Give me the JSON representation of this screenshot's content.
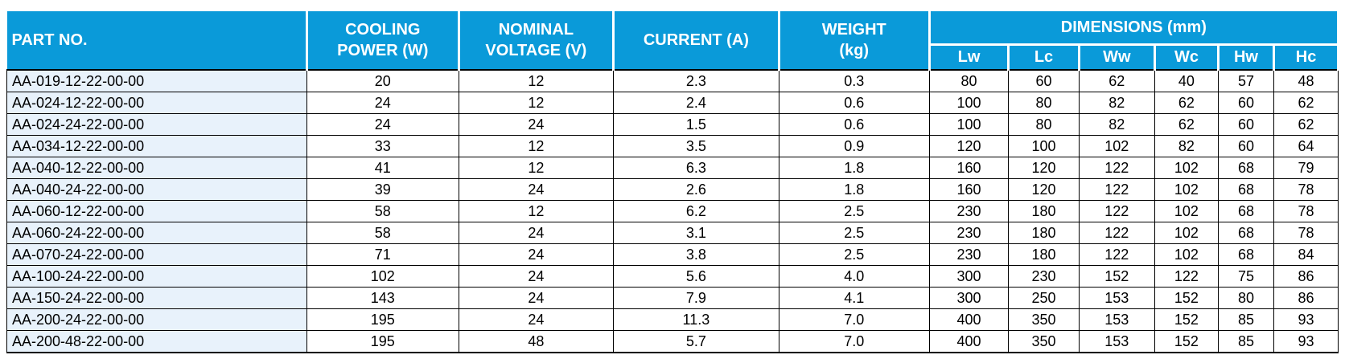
{
  "headers": {
    "part_no": "PART NO.",
    "cooling_power": [
      "COOLING",
      "POWER (W)"
    ],
    "nominal_voltage": [
      "NOMINAL",
      "VOLTAGE (V)"
    ],
    "current": "CURRENT (A)",
    "weight": [
      "WEIGHT",
      "(kg)"
    ],
    "dimensions": "DIMENSIONS (mm)",
    "dim_sub": [
      "Lw",
      "Lc",
      "Ww",
      "Wc",
      "Hw",
      "Hc"
    ]
  },
  "rows": [
    [
      "AA-019-12-22-00-00",
      "20",
      "12",
      "2.3",
      "0.3",
      "80",
      "60",
      "62",
      "40",
      "57",
      "48"
    ],
    [
      "AA-024-12-22-00-00",
      "24",
      "12",
      "2.4",
      "0.6",
      "100",
      "80",
      "82",
      "62",
      "60",
      "62"
    ],
    [
      "AA-024-24-22-00-00",
      "24",
      "24",
      "1.5",
      "0.6",
      "100",
      "80",
      "82",
      "62",
      "60",
      "62"
    ],
    [
      "AA-034-12-22-00-00",
      "33",
      "12",
      "3.5",
      "0.9",
      "120",
      "100",
      "102",
      "82",
      "60",
      "64"
    ],
    [
      "AA-040-12-22-00-00",
      "41",
      "12",
      "6.3",
      "1.8",
      "160",
      "120",
      "122",
      "102",
      "68",
      "79"
    ],
    [
      "AA-040-24-22-00-00",
      "39",
      "24",
      "2.6",
      "1.8",
      "160",
      "120",
      "122",
      "102",
      "68",
      "78"
    ],
    [
      "AA-060-12-22-00-00",
      "58",
      "12",
      "6.2",
      "2.5",
      "230",
      "180",
      "122",
      "102",
      "68",
      "78"
    ],
    [
      "AA-060-24-22-00-00",
      "58",
      "24",
      "3.1",
      "2.5",
      "230",
      "180",
      "122",
      "102",
      "68",
      "78"
    ],
    [
      "AA-070-24-22-00-00",
      "71",
      "24",
      "3.8",
      "2.5",
      "230",
      "180",
      "122",
      "102",
      "68",
      "84"
    ],
    [
      "AA-100-24-22-00-00",
      "102",
      "24",
      "5.6",
      "4.0",
      "300",
      "230",
      "152",
      "122",
      "75",
      "86"
    ],
    [
      "AA-150-24-22-00-00",
      "143",
      "24",
      "7.9",
      "4.1",
      "300",
      "250",
      "153",
      "152",
      "80",
      "86"
    ],
    [
      "AA-200-24-22-00-00",
      "195",
      "24",
      "11.3",
      "7.0",
      "400",
      "350",
      "153",
      "152",
      "85",
      "93"
    ],
    [
      "AA-200-48-22-00-00",
      "195",
      "48",
      "5.7",
      "7.0",
      "400",
      "350",
      "153",
      "152",
      "85",
      "93"
    ]
  ],
  "colors": {
    "header_bg": "#0a9ad9",
    "header_text": "#ffffff",
    "part_cell_bg": "#e8f2fb"
  }
}
